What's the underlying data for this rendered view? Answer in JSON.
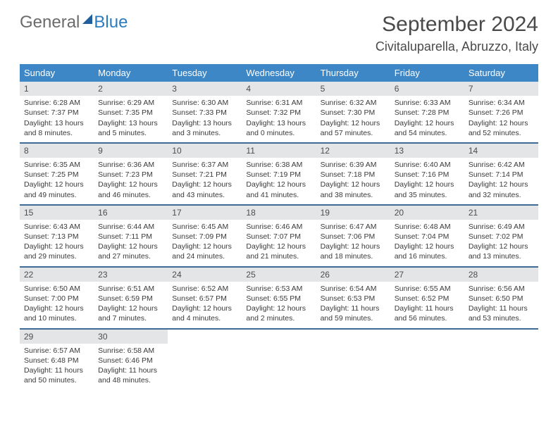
{
  "logo": {
    "part1": "General",
    "part2": "Blue"
  },
  "title": "September 2024",
  "location": "Civitaluparella, Abruzzo, Italy",
  "colors": {
    "header_blue": "#3d87c7",
    "rule_blue": "#3d6b94",
    "daynum_bg": "#e3e5e7",
    "text": "#3a3a3a",
    "title_text": "#4a4a4a"
  },
  "daysOfWeek": [
    "Sunday",
    "Monday",
    "Tuesday",
    "Wednesday",
    "Thursday",
    "Friday",
    "Saturday"
  ],
  "weeks": [
    [
      {
        "n": "1",
        "sr": "Sunrise: 6:28 AM",
        "ss": "Sunset: 7:37 PM",
        "d1": "Daylight: 13 hours",
        "d2": "and 8 minutes."
      },
      {
        "n": "2",
        "sr": "Sunrise: 6:29 AM",
        "ss": "Sunset: 7:35 PM",
        "d1": "Daylight: 13 hours",
        "d2": "and 5 minutes."
      },
      {
        "n": "3",
        "sr": "Sunrise: 6:30 AM",
        "ss": "Sunset: 7:33 PM",
        "d1": "Daylight: 13 hours",
        "d2": "and 3 minutes."
      },
      {
        "n": "4",
        "sr": "Sunrise: 6:31 AM",
        "ss": "Sunset: 7:32 PM",
        "d1": "Daylight: 13 hours",
        "d2": "and 0 minutes."
      },
      {
        "n": "5",
        "sr": "Sunrise: 6:32 AM",
        "ss": "Sunset: 7:30 PM",
        "d1": "Daylight: 12 hours",
        "d2": "and 57 minutes."
      },
      {
        "n": "6",
        "sr": "Sunrise: 6:33 AM",
        "ss": "Sunset: 7:28 PM",
        "d1": "Daylight: 12 hours",
        "d2": "and 54 minutes."
      },
      {
        "n": "7",
        "sr": "Sunrise: 6:34 AM",
        "ss": "Sunset: 7:26 PM",
        "d1": "Daylight: 12 hours",
        "d2": "and 52 minutes."
      }
    ],
    [
      {
        "n": "8",
        "sr": "Sunrise: 6:35 AM",
        "ss": "Sunset: 7:25 PM",
        "d1": "Daylight: 12 hours",
        "d2": "and 49 minutes."
      },
      {
        "n": "9",
        "sr": "Sunrise: 6:36 AM",
        "ss": "Sunset: 7:23 PM",
        "d1": "Daylight: 12 hours",
        "d2": "and 46 minutes."
      },
      {
        "n": "10",
        "sr": "Sunrise: 6:37 AM",
        "ss": "Sunset: 7:21 PM",
        "d1": "Daylight: 12 hours",
        "d2": "and 43 minutes."
      },
      {
        "n": "11",
        "sr": "Sunrise: 6:38 AM",
        "ss": "Sunset: 7:19 PM",
        "d1": "Daylight: 12 hours",
        "d2": "and 41 minutes."
      },
      {
        "n": "12",
        "sr": "Sunrise: 6:39 AM",
        "ss": "Sunset: 7:18 PM",
        "d1": "Daylight: 12 hours",
        "d2": "and 38 minutes."
      },
      {
        "n": "13",
        "sr": "Sunrise: 6:40 AM",
        "ss": "Sunset: 7:16 PM",
        "d1": "Daylight: 12 hours",
        "d2": "and 35 minutes."
      },
      {
        "n": "14",
        "sr": "Sunrise: 6:42 AM",
        "ss": "Sunset: 7:14 PM",
        "d1": "Daylight: 12 hours",
        "d2": "and 32 minutes."
      }
    ],
    [
      {
        "n": "15",
        "sr": "Sunrise: 6:43 AM",
        "ss": "Sunset: 7:13 PM",
        "d1": "Daylight: 12 hours",
        "d2": "and 29 minutes."
      },
      {
        "n": "16",
        "sr": "Sunrise: 6:44 AM",
        "ss": "Sunset: 7:11 PM",
        "d1": "Daylight: 12 hours",
        "d2": "and 27 minutes."
      },
      {
        "n": "17",
        "sr": "Sunrise: 6:45 AM",
        "ss": "Sunset: 7:09 PM",
        "d1": "Daylight: 12 hours",
        "d2": "and 24 minutes."
      },
      {
        "n": "18",
        "sr": "Sunrise: 6:46 AM",
        "ss": "Sunset: 7:07 PM",
        "d1": "Daylight: 12 hours",
        "d2": "and 21 minutes."
      },
      {
        "n": "19",
        "sr": "Sunrise: 6:47 AM",
        "ss": "Sunset: 7:06 PM",
        "d1": "Daylight: 12 hours",
        "d2": "and 18 minutes."
      },
      {
        "n": "20",
        "sr": "Sunrise: 6:48 AM",
        "ss": "Sunset: 7:04 PM",
        "d1": "Daylight: 12 hours",
        "d2": "and 16 minutes."
      },
      {
        "n": "21",
        "sr": "Sunrise: 6:49 AM",
        "ss": "Sunset: 7:02 PM",
        "d1": "Daylight: 12 hours",
        "d2": "and 13 minutes."
      }
    ],
    [
      {
        "n": "22",
        "sr": "Sunrise: 6:50 AM",
        "ss": "Sunset: 7:00 PM",
        "d1": "Daylight: 12 hours",
        "d2": "and 10 minutes."
      },
      {
        "n": "23",
        "sr": "Sunrise: 6:51 AM",
        "ss": "Sunset: 6:59 PM",
        "d1": "Daylight: 12 hours",
        "d2": "and 7 minutes."
      },
      {
        "n": "24",
        "sr": "Sunrise: 6:52 AM",
        "ss": "Sunset: 6:57 PM",
        "d1": "Daylight: 12 hours",
        "d2": "and 4 minutes."
      },
      {
        "n": "25",
        "sr": "Sunrise: 6:53 AM",
        "ss": "Sunset: 6:55 PM",
        "d1": "Daylight: 12 hours",
        "d2": "and 2 minutes."
      },
      {
        "n": "26",
        "sr": "Sunrise: 6:54 AM",
        "ss": "Sunset: 6:53 PM",
        "d1": "Daylight: 11 hours",
        "d2": "and 59 minutes."
      },
      {
        "n": "27",
        "sr": "Sunrise: 6:55 AM",
        "ss": "Sunset: 6:52 PM",
        "d1": "Daylight: 11 hours",
        "d2": "and 56 minutes."
      },
      {
        "n": "28",
        "sr": "Sunrise: 6:56 AM",
        "ss": "Sunset: 6:50 PM",
        "d1": "Daylight: 11 hours",
        "d2": "and 53 minutes."
      }
    ],
    [
      {
        "n": "29",
        "sr": "Sunrise: 6:57 AM",
        "ss": "Sunset: 6:48 PM",
        "d1": "Daylight: 11 hours",
        "d2": "and 50 minutes."
      },
      {
        "n": "30",
        "sr": "Sunrise: 6:58 AM",
        "ss": "Sunset: 6:46 PM",
        "d1": "Daylight: 11 hours",
        "d2": "and 48 minutes."
      },
      null,
      null,
      null,
      null,
      null
    ]
  ]
}
